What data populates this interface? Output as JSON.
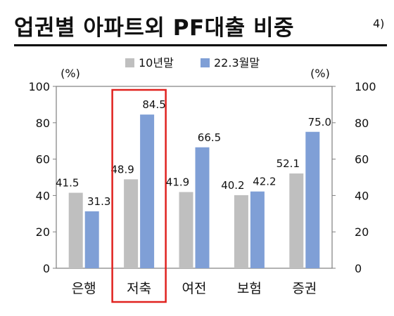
{
  "title": "업권별 아파트외 PF대출 비중",
  "title_superscript": "4)",
  "chart_data": {
    "type": "bar",
    "categories": [
      "은행",
      "저축",
      "여전",
      "보험",
      "증권"
    ],
    "series": [
      {
        "name": "10년말",
        "values": [
          41.5,
          48.9,
          41.9,
          40.2,
          52.1
        ],
        "color": "#bfbfbf"
      },
      {
        "name": "22.3월말",
        "values": [
          31.3,
          84.5,
          66.5,
          42.2,
          75.0
        ],
        "color": "#7f9fd6"
      }
    ],
    "ylim": [
      0,
      100
    ],
    "yticks": [
      0,
      20,
      40,
      60,
      80,
      100
    ],
    "y_unit_left": "(%)",
    "y_unit_right": "(%)",
    "legend_position": "top-center",
    "highlight_category": "저축",
    "highlight_color": "#e0221f",
    "grid": false
  }
}
